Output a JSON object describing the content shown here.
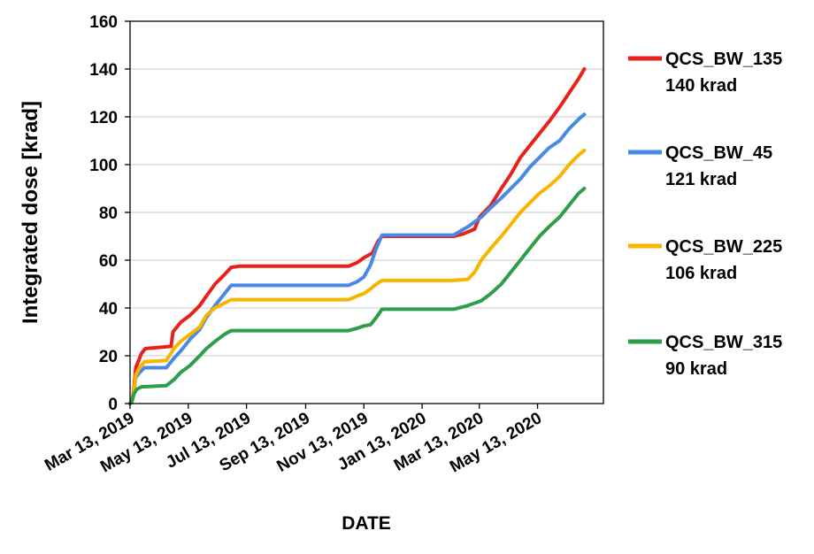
{
  "chart_data": {
    "type": "line",
    "xlabel": "DATE",
    "ylabel": "Integrated dose [krad]",
    "ylim": [
      0,
      160
    ],
    "yticks": [
      0,
      20,
      40,
      60,
      80,
      100,
      120,
      140,
      160
    ],
    "xlim": [
      "2019-03-13",
      "2020-07-21"
    ],
    "xticks": [
      "2019-03-13",
      "2019-05-13",
      "2019-07-13",
      "2019-09-13",
      "2019-11-13",
      "2020-01-13",
      "2020-03-13",
      "2020-05-13"
    ],
    "xtick_labels": [
      "Mar 13, 2019",
      "May 13, 2019",
      "Jul 13, 2019",
      "Sep 13, 2019",
      "Nov 13, 2019",
      "Jan 13, 2020",
      "Mar 13, 2020",
      "May 13, 2020"
    ],
    "grid": "horizontal",
    "legend_position": "right",
    "series": [
      {
        "name": "QCS_BW_135",
        "label_value": "140 krad",
        "color": "#e8211a",
        "points": [
          [
            "2019-03-13",
            0
          ],
          [
            "2019-03-15",
            1
          ],
          [
            "2019-03-17",
            6
          ],
          [
            "2019-03-19",
            15
          ],
          [
            "2019-03-22",
            18
          ],
          [
            "2019-03-25",
            21
          ],
          [
            "2019-03-29",
            23
          ],
          [
            "2019-04-12",
            23.5
          ],
          [
            "2019-04-25",
            24
          ],
          [
            "2019-04-27",
            30
          ],
          [
            "2019-05-05",
            34
          ],
          [
            "2019-05-15",
            37
          ],
          [
            "2019-05-25",
            41
          ],
          [
            "2019-06-01",
            45
          ],
          [
            "2019-06-10",
            50
          ],
          [
            "2019-06-20",
            54
          ],
          [
            "2019-06-27",
            57
          ],
          [
            "2019-07-05",
            57.5
          ],
          [
            "2019-10-28",
            57.5
          ],
          [
            "2019-11-06",
            59
          ],
          [
            "2019-11-13",
            61
          ],
          [
            "2019-11-22",
            63
          ],
          [
            "2019-11-28",
            68
          ],
          [
            "2019-12-02",
            70
          ],
          [
            "2020-02-15",
            70
          ],
          [
            "2020-02-25",
            71
          ],
          [
            "2020-03-08",
            73
          ],
          [
            "2020-03-13",
            78
          ],
          [
            "2020-03-25",
            83
          ],
          [
            "2020-04-05",
            90
          ],
          [
            "2020-04-15",
            96
          ],
          [
            "2020-04-25",
            103
          ],
          [
            "2020-05-05",
            108
          ],
          [
            "2020-05-15",
            113
          ],
          [
            "2020-05-25",
            118
          ],
          [
            "2020-06-05",
            124
          ],
          [
            "2020-06-15",
            130
          ],
          [
            "2020-06-25",
            136
          ],
          [
            "2020-07-01",
            140
          ]
        ]
      },
      {
        "name": "QCS_BW_45",
        "label_value": "121 krad",
        "color": "#4a88e8",
        "points": [
          [
            "2019-03-13",
            0
          ],
          [
            "2019-03-15",
            1
          ],
          [
            "2019-03-17",
            5
          ],
          [
            "2019-03-19",
            11
          ],
          [
            "2019-03-23",
            13
          ],
          [
            "2019-03-28",
            15
          ],
          [
            "2019-04-20",
            15
          ],
          [
            "2019-04-28",
            19
          ],
          [
            "2019-05-05",
            22
          ],
          [
            "2019-05-15",
            27
          ],
          [
            "2019-05-25",
            31
          ],
          [
            "2019-06-01",
            36
          ],
          [
            "2019-06-10",
            41
          ],
          [
            "2019-06-20",
            46
          ],
          [
            "2019-06-27",
            49.5
          ],
          [
            "2019-10-28",
            49.5
          ],
          [
            "2019-11-06",
            51
          ],
          [
            "2019-11-13",
            53
          ],
          [
            "2019-11-20",
            58
          ],
          [
            "2019-11-26",
            65
          ],
          [
            "2019-12-02",
            70.5
          ],
          [
            "2020-02-15",
            70.5
          ],
          [
            "2020-03-01",
            74
          ],
          [
            "2020-03-15",
            78
          ],
          [
            "2020-03-25",
            82
          ],
          [
            "2020-04-05",
            86
          ],
          [
            "2020-04-15",
            90
          ],
          [
            "2020-04-25",
            94
          ],
          [
            "2020-05-05",
            99
          ],
          [
            "2020-05-15",
            103
          ],
          [
            "2020-05-25",
            107
          ],
          [
            "2020-06-05",
            110
          ],
          [
            "2020-06-15",
            115
          ],
          [
            "2020-06-25",
            119
          ],
          [
            "2020-07-01",
            121
          ]
        ]
      },
      {
        "name": "QCS_BW_225",
        "label_value": "106 krad",
        "color": "#f7b500",
        "points": [
          [
            "2019-03-13",
            0
          ],
          [
            "2019-03-15",
            1
          ],
          [
            "2019-03-17",
            5
          ],
          [
            "2019-03-19",
            12
          ],
          [
            "2019-03-23",
            15
          ],
          [
            "2019-03-28",
            17.5
          ],
          [
            "2019-04-20",
            18
          ],
          [
            "2019-04-28",
            23
          ],
          [
            "2019-05-05",
            26
          ],
          [
            "2019-05-15",
            29
          ],
          [
            "2019-05-25",
            32
          ],
          [
            "2019-06-01",
            37
          ],
          [
            "2019-06-10",
            40
          ],
          [
            "2019-06-20",
            42
          ],
          [
            "2019-06-27",
            43.5
          ],
          [
            "2019-10-28",
            43.5
          ],
          [
            "2019-11-06",
            45
          ],
          [
            "2019-11-13",
            46
          ],
          [
            "2019-11-20",
            48
          ],
          [
            "2019-11-26",
            50
          ],
          [
            "2019-12-02",
            51.5
          ],
          [
            "2020-02-15",
            51.5
          ],
          [
            "2020-03-01",
            52
          ],
          [
            "2020-03-08",
            55
          ],
          [
            "2020-03-15",
            60
          ],
          [
            "2020-03-25",
            65
          ],
          [
            "2020-04-05",
            70
          ],
          [
            "2020-04-15",
            75
          ],
          [
            "2020-04-25",
            80
          ],
          [
            "2020-05-05",
            84
          ],
          [
            "2020-05-15",
            88
          ],
          [
            "2020-05-25",
            91
          ],
          [
            "2020-06-05",
            95
          ],
          [
            "2020-06-15",
            100
          ],
          [
            "2020-06-25",
            104
          ],
          [
            "2020-07-01",
            106
          ]
        ]
      },
      {
        "name": "QCS_BW_315",
        "label_value": "90 krad",
        "color": "#2e9e4a",
        "points": [
          [
            "2019-03-13",
            0
          ],
          [
            "2019-03-15",
            1
          ],
          [
            "2019-03-17",
            4
          ],
          [
            "2019-03-20",
            6
          ],
          [
            "2019-03-25",
            7
          ],
          [
            "2019-04-20",
            7.5
          ],
          [
            "2019-04-28",
            10
          ],
          [
            "2019-05-05",
            13
          ],
          [
            "2019-05-15",
            16
          ],
          [
            "2019-05-25",
            20
          ],
          [
            "2019-06-01",
            23
          ],
          [
            "2019-06-10",
            26
          ],
          [
            "2019-06-20",
            29
          ],
          [
            "2019-06-27",
            30.5
          ],
          [
            "2019-10-28",
            30.5
          ],
          [
            "2019-11-06",
            31.5
          ],
          [
            "2019-11-13",
            32.5
          ],
          [
            "2019-11-20",
            33
          ],
          [
            "2019-11-26",
            36
          ],
          [
            "2019-12-02",
            39.5
          ],
          [
            "2020-02-15",
            39.5
          ],
          [
            "2020-03-01",
            41
          ],
          [
            "2020-03-15",
            43
          ],
          [
            "2020-03-25",
            46
          ],
          [
            "2020-04-05",
            50
          ],
          [
            "2020-04-15",
            55
          ],
          [
            "2020-04-25",
            60
          ],
          [
            "2020-05-05",
            65
          ],
          [
            "2020-05-15",
            70
          ],
          [
            "2020-05-25",
            74
          ],
          [
            "2020-06-05",
            78
          ],
          [
            "2020-06-15",
            83
          ],
          [
            "2020-06-25",
            88
          ],
          [
            "2020-07-01",
            90
          ]
        ]
      }
    ]
  }
}
